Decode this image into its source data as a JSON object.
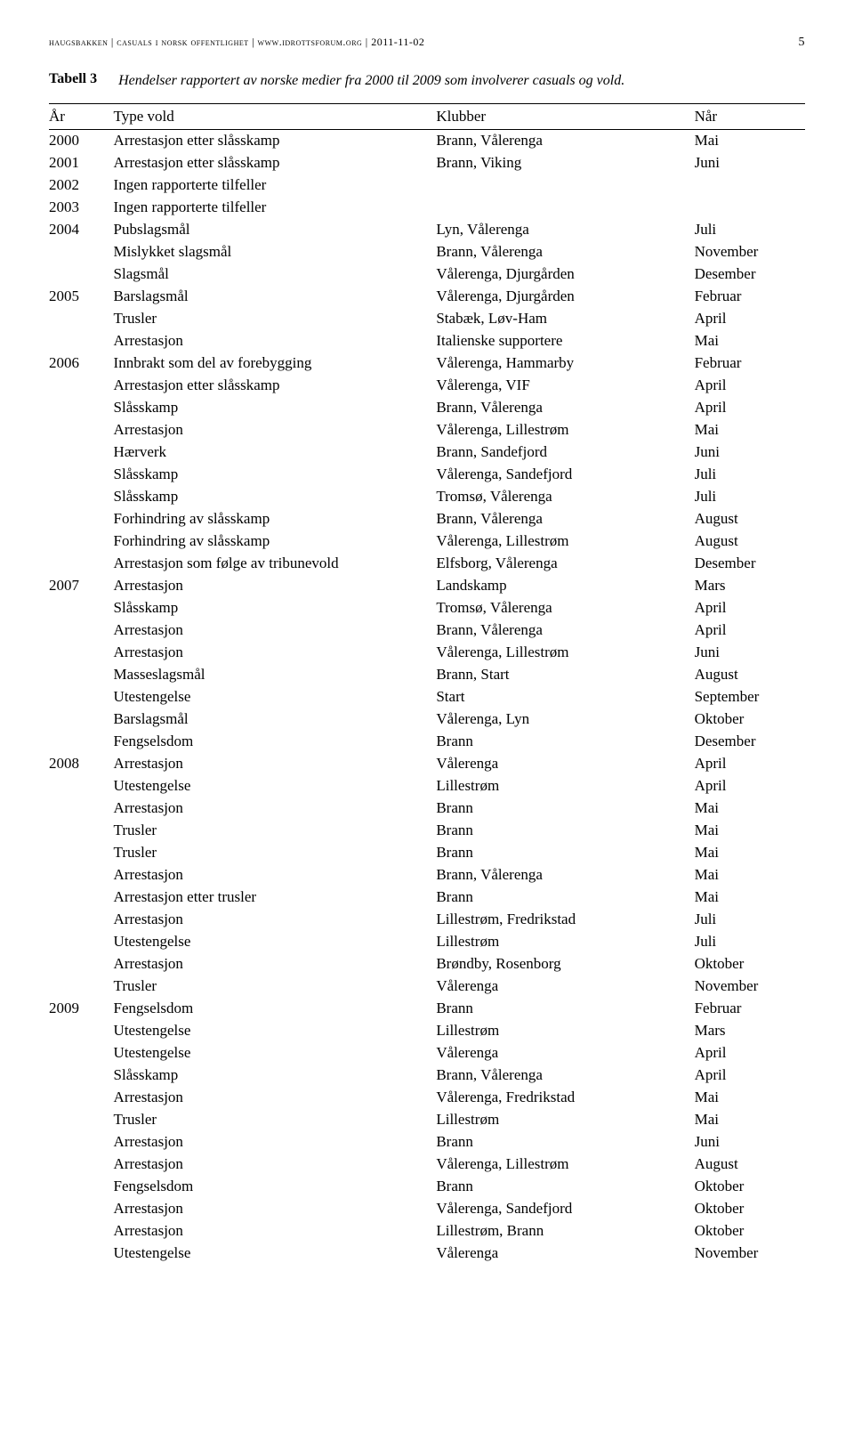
{
  "header": {
    "left": "haugsbakken | casuals i norsk offentlighet | www.idrottsforum.org | 2011-11-02",
    "page": "5"
  },
  "caption": {
    "label": "Tabell 3",
    "desc": "Hendelser rapportert av norske medier fra 2000 til 2009 som involverer casuals og vold."
  },
  "columns": [
    "År",
    "Type vold",
    "Klubber",
    "Når"
  ],
  "rows": [
    [
      "2000",
      "Arrestasjon etter slåsskamp",
      "Brann, Vålerenga",
      "Mai"
    ],
    [
      "2001",
      "Arrestasjon etter slåsskamp",
      "Brann, Viking",
      "Juni"
    ],
    [
      "2002",
      "Ingen rapporterte tilfeller",
      "",
      ""
    ],
    [
      "2003",
      "Ingen rapporterte tilfeller",
      "",
      ""
    ],
    [
      "2004",
      "Pubslagsmål",
      "Lyn, Vålerenga",
      "Juli"
    ],
    [
      "",
      "Mislykket slagsmål",
      "Brann, Vålerenga",
      "November"
    ],
    [
      "",
      "Slagsmål",
      "Vålerenga, Djurgården",
      "Desember"
    ],
    [
      "2005",
      "Barslagsmål",
      "Vålerenga, Djurgården",
      "Februar"
    ],
    [
      "",
      "Trusler",
      "Stabæk, Løv-Ham",
      "April"
    ],
    [
      "",
      "Arrestasjon",
      "Italienske supportere",
      "Mai"
    ],
    [
      "2006",
      "Innbrakt som del av forebygging",
      "Vålerenga, Hammarby",
      "Februar"
    ],
    [
      "",
      "Arrestasjon etter slåsskamp",
      "Vålerenga, VIF",
      "April"
    ],
    [
      "",
      "Slåsskamp",
      "Brann, Vålerenga",
      "April"
    ],
    [
      "",
      "Arrestasjon",
      "Vålerenga, Lillestrøm",
      "Mai"
    ],
    [
      "",
      "Hærverk",
      "Brann, Sandefjord",
      "Juni"
    ],
    [
      "",
      "Slåsskamp",
      "Vålerenga, Sandefjord",
      "Juli"
    ],
    [
      "",
      "Slåsskamp",
      "Tromsø, Vålerenga",
      "Juli"
    ],
    [
      "",
      "Forhindring av slåsskamp",
      "Brann, Vålerenga",
      "August"
    ],
    [
      "",
      "Forhindring av slåsskamp",
      "Vålerenga, Lillestrøm",
      "August"
    ],
    [
      "",
      "Arrestasjon som følge av tribunevold",
      "Elfsborg, Vålerenga",
      "Desember"
    ],
    [
      "2007",
      "Arrestasjon",
      "Landskamp",
      "Mars"
    ],
    [
      "",
      "Slåsskamp",
      "Tromsø, Vålerenga",
      "April"
    ],
    [
      "",
      "Arrestasjon",
      "Brann, Vålerenga",
      "April"
    ],
    [
      "",
      "Arrestasjon",
      "Vålerenga, Lillestrøm",
      "Juni"
    ],
    [
      "",
      "Masseslagsmål",
      "Brann, Start",
      "August"
    ],
    [
      "",
      "Utestengelse",
      "Start",
      "September"
    ],
    [
      "",
      "Barslagsmål",
      "Vålerenga, Lyn",
      "Oktober"
    ],
    [
      "",
      "Fengselsdom",
      "Brann",
      "Desember"
    ],
    [
      "2008",
      "Arrestasjon",
      "Vålerenga",
      "April"
    ],
    [
      "",
      "Utestengelse",
      "Lillestrøm",
      "April"
    ],
    [
      "",
      "Arrestasjon",
      "Brann",
      "Mai"
    ],
    [
      "",
      "Trusler",
      "Brann",
      "Mai"
    ],
    [
      "",
      "Trusler",
      "Brann",
      "Mai"
    ],
    [
      "",
      "Arrestasjon",
      "Brann, Vålerenga",
      "Mai"
    ],
    [
      "",
      "Arrestasjon etter trusler",
      "Brann",
      "Mai"
    ],
    [
      "",
      "Arrestasjon",
      "Lillestrøm, Fredrikstad",
      "Juli"
    ],
    [
      "",
      "Utestengelse",
      "Lillestrøm",
      "Juli"
    ],
    [
      "",
      "Arrestasjon",
      "Brøndby, Rosenborg",
      "Oktober"
    ],
    [
      "",
      "Trusler",
      "Vålerenga",
      "November"
    ],
    [
      "2009",
      "Fengselsdom",
      "Brann",
      "Februar"
    ],
    [
      "",
      "Utestengelse",
      "Lillestrøm",
      "Mars"
    ],
    [
      "",
      "Utestengelse",
      "Vålerenga",
      "April"
    ],
    [
      "",
      "Slåsskamp",
      "Brann, Vålerenga",
      "April"
    ],
    [
      "",
      "Arrestasjon",
      "Vålerenga, Fredrikstad",
      "Mai"
    ],
    [
      "",
      "Trusler",
      "Lillestrøm",
      "Mai"
    ],
    [
      "",
      "Arrestasjon",
      "Brann",
      "Juni"
    ],
    [
      "",
      "Arrestasjon",
      "Vålerenga, Lillestrøm",
      "August"
    ],
    [
      "",
      "Fengselsdom",
      "Brann",
      "Oktober"
    ],
    [
      "",
      "Arrestasjon",
      "Vålerenga, Sandefjord",
      "Oktober"
    ],
    [
      "",
      "Arrestasjon",
      "Lillestrøm, Brann",
      "Oktober"
    ],
    [
      "",
      "Utestengelse",
      "Vålerenga",
      "November"
    ]
  ]
}
